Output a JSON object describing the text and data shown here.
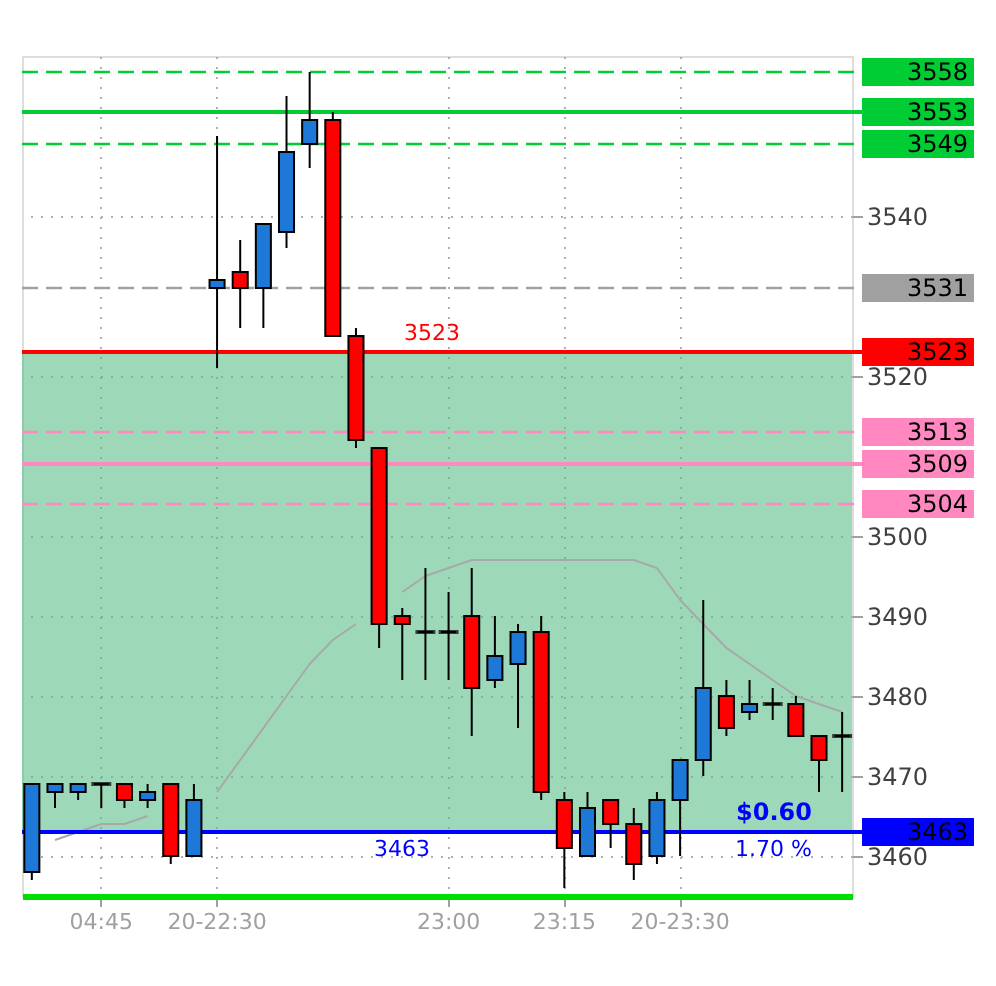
{
  "chart_data": {
    "type": "candlestick",
    "categories": [
      null,
      null,
      null,
      "04:45",
      null,
      null,
      null,
      null,
      "20-22:30",
      null,
      null,
      null,
      null,
      null,
      null,
      null,
      null,
      null,
      "23:00",
      null,
      null,
      null,
      null,
      "23:15",
      null,
      null,
      null,
      null,
      "20-23:30",
      null,
      null,
      null,
      null,
      null,
      null,
      null
    ],
    "ohlc": [
      [
        3458,
        3469,
        3457,
        3469
      ],
      [
        3468,
        3469,
        3466,
        3469
      ],
      [
        3468,
        3469,
        3467,
        3469
      ],
      [
        3469,
        3469,
        3466,
        3469
      ],
      [
        3469,
        3469,
        3466,
        3467
      ],
      [
        3467,
        3469,
        3466,
        3468
      ],
      [
        3469,
        3469,
        3459,
        3460
      ],
      [
        3460,
        3469,
        3460,
        3467
      ],
      [
        3531,
        3550,
        3521,
        3532
      ],
      [
        3533,
        3537,
        3526,
        3531
      ],
      [
        3531,
        3539,
        3526,
        3539
      ],
      [
        3538,
        3555,
        3536,
        3548
      ],
      [
        3549,
        3558,
        3546,
        3552
      ],
      [
        3552,
        3553,
        3525,
        3525
      ],
      [
        3525,
        3526,
        3511,
        3512
      ],
      [
        3511,
        3511,
        3486,
        3489
      ],
      [
        3490,
        3491,
        3482,
        3489
      ],
      [
        3488,
        3496,
        3482,
        3488
      ],
      [
        3488,
        3493,
        3482,
        3488
      ],
      [
        3490,
        3496,
        3475,
        3481
      ],
      [
        3482,
        3490,
        3481,
        3485
      ],
      [
        3484,
        3489,
        3476,
        3488
      ],
      [
        3488,
        3490,
        3467,
        3468
      ],
      [
        3467,
        3468,
        3456,
        3461
      ],
      [
        3460,
        3468,
        3460,
        3466
      ],
      [
        3467,
        3467,
        3461,
        3464
      ],
      [
        3464,
        3466,
        3457,
        3459
      ],
      [
        3460,
        3468,
        3459,
        3467
      ],
      [
        3467,
        3472,
        3460,
        3472
      ],
      [
        3472,
        3492,
        3470,
        3481
      ],
      [
        3480,
        3482,
        3475,
        3476
      ],
      [
        3478,
        3482,
        3477,
        3479
      ],
      [
        3479,
        3481,
        3477,
        3479
      ],
      [
        3479,
        3480,
        3475,
        3475
      ],
      [
        3475,
        3475,
        3468,
        3472
      ],
      [
        3475,
        3478,
        3468,
        3475
      ]
    ],
    "colors": [
      "#1e78d8",
      "#1e78d8",
      "#1e78d8",
      "#000000",
      "#ff0000",
      "#1e78d8",
      "#ff0000",
      "#1e78d8",
      "#1e78d8",
      "#ff0000",
      "#1e78d8",
      "#1e78d8",
      "#1e78d8",
      "#ff0000",
      "#ff0000",
      "#ff0000",
      "#ff0000",
      "#000000",
      "#000000",
      "#ff0000",
      "#1e78d8",
      "#1e78d8",
      "#ff0000",
      "#ff0000",
      "#1e78d8",
      "#ff0000",
      "#ff0000",
      "#1e78d8",
      "#1e78d8",
      "#1e78d8",
      "#ff0000",
      "#1e78d8",
      "#000000",
      "#ff0000",
      "#ff0000",
      "#000000"
    ],
    "series": [
      {
        "type": "line",
        "color": "#a8a8a8",
        "values": [
          null,
          3462,
          3463,
          3464,
          3464,
          3465,
          null,
          null,
          3468,
          3472,
          3476,
          3480,
          3484,
          3487,
          3489,
          null,
          3493,
          3495,
          3496,
          3497,
          3497,
          3497,
          3497,
          3497,
          3497,
          3497,
          3497,
          3496,
          3492,
          3489,
          3486,
          3484,
          3482,
          3480,
          3479,
          3478
        ]
      }
    ],
    "ylim": [
      3455,
      3560
    ],
    "yticks": [
      3460,
      3470,
      3480,
      3490,
      3500,
      3520,
      3540
    ],
    "ref_lines": [
      {
        "axis": "y",
        "value": 3558,
        "label": "3558",
        "color": "#00cc33",
        "line_style": "dashed"
      },
      {
        "axis": "y",
        "value": 3553,
        "label": "3553",
        "color": "#00cc33",
        "line_style": "solid"
      },
      {
        "axis": "y",
        "value": 3549,
        "label": "3549",
        "color": "#00cc33",
        "line_style": "dashed"
      },
      {
        "axis": "y",
        "value": 3531,
        "label": "3531",
        "color": "#a0a0a0",
        "line_style": "dashed"
      },
      {
        "axis": "y",
        "value": 3523,
        "label": "3523",
        "color": "#ff0000",
        "line_style": "solid"
      },
      {
        "axis": "y",
        "value": 3513,
        "label": "3513",
        "color": "#ff88c0",
        "line_style": "dashed"
      },
      {
        "axis": "y",
        "value": 3509,
        "label": "3509",
        "color": "#ff88c0",
        "line_style": "solid"
      },
      {
        "axis": "y",
        "value": 3504,
        "label": "3504",
        "color": "#ff88c0",
        "line_style": "dashed"
      },
      {
        "axis": "y",
        "value": 3463,
        "label": "3463",
        "color": "#0000ff",
        "line_style": "solid"
      }
    ],
    "bands": [
      {
        "axis": "y",
        "from": 3463,
        "to": 3523,
        "color": "#5cc08a"
      }
    ],
    "annotations": [
      {
        "text": "3523",
        "y": 3523
      },
      {
        "text": "3463",
        "y": 3463
      },
      {
        "text": "$0.60",
        "y": 3463
      },
      {
        "text": "1.70 %",
        "y": 3463
      }
    ],
    "grid": true
  }
}
